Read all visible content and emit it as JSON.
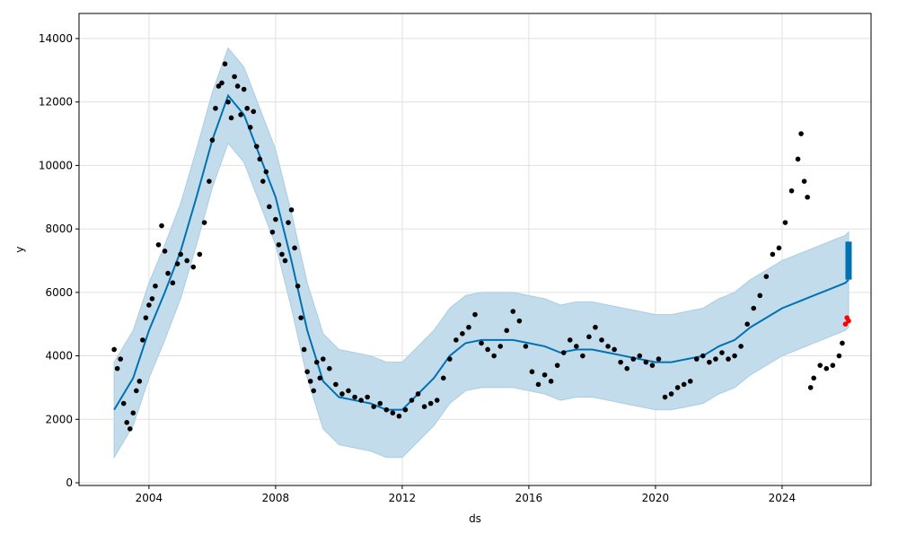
{
  "chart_data": {
    "type": "line",
    "xlabel": "ds",
    "ylabel": "y",
    "xlim": [
      2001.79,
      2026.81
    ],
    "ylim": [
      -85,
      14790
    ],
    "xticks": [
      2004,
      2008,
      2012,
      2016,
      2020,
      2024
    ],
    "yticks": [
      0,
      2000,
      4000,
      6000,
      8000,
      10000,
      12000,
      14000
    ],
    "grid": true,
    "series": [
      {
        "kind": "band",
        "color": "#c3dcec",
        "x": [
          2002.9,
          2003.5,
          2004.0,
          2004.5,
          2005.0,
          2005.5,
          2006.0,
          2006.5,
          2007.0,
          2007.5,
          2008.0,
          2008.5,
          2009.0,
          2009.5,
          2010.0,
          2010.5,
          2011.0,
          2011.5,
          2012.0,
          2012.5,
          2013.0,
          2013.5,
          2014.0,
          2014.5,
          2015.0,
          2015.5,
          2016.0,
          2016.5,
          2017.0,
          2017.5,
          2018.0,
          2018.5,
          2019.0,
          2019.5,
          2020.0,
          2020.5,
          2021.0,
          2021.5,
          2022.0,
          2022.5,
          2023.0,
          2023.5,
          2024.0,
          2024.5,
          2025.0,
          2025.5,
          2026.0,
          2026.1
        ],
        "lower": [
          800,
          1800,
          3300,
          4500,
          5800,
          7500,
          9300,
          10700,
          10100,
          8800,
          7500,
          5500,
          3300,
          1700,
          1200,
          1100,
          1000,
          800,
          800,
          1300,
          1800,
          2500,
          2900,
          3000,
          3000,
          3000,
          2900,
          2800,
          2600,
          2700,
          2700,
          2600,
          2500,
          2400,
          2300,
          2300,
          2400,
          2500,
          2800,
          3000,
          3400,
          3700,
          4000,
          4200,
          4400,
          4600,
          4800,
          4900
        ],
        "upper": [
          3800,
          4800,
          6300,
          7500,
          8800,
          10500,
          12300,
          13700,
          13100,
          11800,
          10500,
          8500,
          6300,
          4700,
          4200,
          4100,
          4000,
          3800,
          3800,
          4300,
          4800,
          5500,
          5900,
          6000,
          6000,
          6000,
          5900,
          5800,
          5600,
          5700,
          5700,
          5600,
          5500,
          5400,
          5300,
          5300,
          5400,
          5500,
          5800,
          6000,
          6400,
          6700,
          7000,
          7200,
          7400,
          7600,
          7800,
          7900
        ]
      },
      {
        "kind": "line",
        "color": "#0072b2",
        "x": [
          2002.9,
          2003.5,
          2004.0,
          2004.5,
          2005.0,
          2005.5,
          2006.0,
          2006.5,
          2007.0,
          2007.5,
          2008.0,
          2008.5,
          2009.0,
          2009.5,
          2010.0,
          2010.5,
          2011.0,
          2011.5,
          2012.0,
          2012.5,
          2013.0,
          2013.5,
          2014.0,
          2014.5,
          2015.0,
          2015.5,
          2016.0,
          2016.5,
          2017.0,
          2017.5,
          2018.0,
          2018.5,
          2019.0,
          2019.5,
          2020.0,
          2020.5,
          2021.0,
          2021.5,
          2022.0,
          2022.5,
          2023.0,
          2023.5,
          2024.0,
          2024.5,
          2025.0,
          2025.5,
          2026.0,
          2026.1
        ],
        "values": [
          2300,
          3300,
          4800,
          6000,
          7300,
          9000,
          10800,
          12200,
          11600,
          10300,
          9000,
          7000,
          4800,
          3200,
          2700,
          2600,
          2500,
          2300,
          2300,
          2800,
          3300,
          4000,
          4400,
          4500,
          4500,
          4500,
          4400,
          4300,
          4100,
          4200,
          4200,
          4100,
          4000,
          3900,
          3800,
          3800,
          3900,
          4000,
          4300,
          4500,
          4900,
          5200,
          5500,
          5700,
          5900,
          6100,
          6300,
          6400
        ]
      },
      {
        "kind": "scatter",
        "color": "#000000",
        "x": [
          2002.9,
          2003.0,
          2003.1,
          2003.2,
          2003.3,
          2003.4,
          2003.5,
          2003.6,
          2003.7,
          2003.8,
          2003.9,
          2004.0,
          2004.1,
          2004.2,
          2004.3,
          2004.4,
          2004.5,
          2004.6,
          2004.75,
          2004.9,
          2005.0,
          2005.2,
          2005.4,
          2005.6,
          2005.75,
          2005.9,
          2006.0,
          2006.1,
          2006.2,
          2006.3,
          2006.4,
          2006.5,
          2006.6,
          2006.7,
          2006.8,
          2006.9,
          2007.0,
          2007.1,
          2007.2,
          2007.3,
          2007.4,
          2007.5,
          2007.6,
          2007.7,
          2007.8,
          2007.9,
          2008.0,
          2008.1,
          2008.2,
          2008.3,
          2008.4,
          2008.5,
          2008.6,
          2008.7,
          2008.8,
          2008.9,
          2009.0,
          2009.1,
          2009.2,
          2009.3,
          2009.4,
          2009.5,
          2009.7,
          2009.9,
          2010.1,
          2010.3,
          2010.5,
          2010.7,
          2010.9,
          2011.1,
          2011.3,
          2011.5,
          2011.7,
          2011.9,
          2012.1,
          2012.3,
          2012.5,
          2012.7,
          2012.9,
          2013.1,
          2013.3,
          2013.5,
          2013.7,
          2013.9,
          2014.1,
          2014.3,
          2014.5,
          2014.7,
          2014.9,
          2015.1,
          2015.3,
          2015.5,
          2015.7,
          2015.9,
          2016.1,
          2016.3,
          2016.5,
          2016.7,
          2016.9,
          2017.1,
          2017.3,
          2017.5,
          2017.7,
          2017.9,
          2018.1,
          2018.3,
          2018.5,
          2018.7,
          2018.9,
          2019.1,
          2019.3,
          2019.5,
          2019.7,
          2019.9,
          2020.1,
          2020.3,
          2020.5,
          2020.7,
          2020.9,
          2021.1,
          2021.3,
          2021.5,
          2021.7,
          2021.9,
          2022.1,
          2022.3,
          2022.5,
          2022.7,
          2022.9,
          2023.1,
          2023.3,
          2023.5,
          2023.7,
          2023.9,
          2024.1,
          2024.3,
          2024.5,
          2024.6,
          2024.7,
          2024.8,
          2024.9,
          2025.0,
          2025.2,
          2025.4,
          2025.6,
          2025.8,
          2025.9
        ],
        "values": [
          4200,
          3600,
          3900,
          2500,
          1900,
          1700,
          2200,
          2900,
          3200,
          4500,
          5200,
          5600,
          5800,
          6200,
          7500,
          8100,
          7300,
          6600,
          6300,
          6900,
          7200,
          7000,
          6800,
          7200,
          8200,
          9500,
          10800,
          11800,
          12500,
          12600,
          13200,
          12000,
          11500,
          12800,
          12500,
          11600,
          12400,
          11800,
          11200,
          11700,
          10600,
          10200,
          9500,
          9800,
          8700,
          7900,
          8300,
          7500,
          7200,
          7000,
          8200,
          8600,
          7400,
          6200,
          5200,
          4200,
          3500,
          3200,
          2900,
          3800,
          3300,
          3900,
          3600,
          3100,
          2800,
          2900,
          2700,
          2600,
          2700,
          2400,
          2500,
          2300,
          2200,
          2100,
          2300,
          2600,
          2800,
          2400,
          2500,
          2600,
          3300,
          3900,
          4500,
          4700,
          4900,
          5300,
          4400,
          4200,
          4000,
          4300,
          4800,
          5400,
          5100,
          4300,
          3500,
          3100,
          3400,
          3200,
          3700,
          4100,
          4500,
          4300,
          4000,
          4600,
          4900,
          4500,
          4300,
          4200,
          3800,
          3600,
          3900,
          4000,
          3800,
          3700,
          3900,
          2700,
          2800,
          3000,
          3100,
          3200,
          3900,
          4000,
          3800,
          3900,
          4100,
          3900,
          4000,
          4300,
          5000,
          5500,
          5900,
          6500,
          7200,
          7400,
          8200,
          9200,
          10200,
          11000,
          9500,
          9000,
          3000,
          3300,
          3700,
          3600,
          3700,
          4000,
          4400
        ]
      },
      {
        "kind": "scatter",
        "color": "#ff0000",
        "x": [
          2026.0,
          2026.05,
          2026.1
        ],
        "values": [
          5000,
          5200,
          5100
        ]
      },
      {
        "kind": "segment",
        "color": "#0072b2",
        "x": [
          2026.1,
          2026.1
        ],
        "values": [
          6400,
          7600
        ]
      }
    ]
  }
}
